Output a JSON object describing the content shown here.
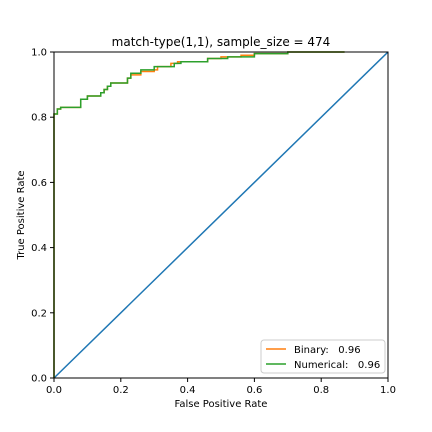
{
  "chart_data": {
    "type": "line",
    "title": "match-type(1,1), sample_size =  474",
    "xlabel": "False Positive Rate",
    "ylabel": "True Positive Rate",
    "xlim": [
      0.0,
      1.0
    ],
    "ylim": [
      0.0,
      1.0
    ],
    "xticks": [
      0.0,
      0.2,
      0.4,
      0.6,
      0.8,
      1.0
    ],
    "yticks": [
      0.0,
      0.2,
      0.4,
      0.6,
      0.8,
      1.0
    ],
    "xtick_labels": [
      "0.0",
      "0.2",
      "0.4",
      "0.6",
      "0.8",
      "1.0"
    ],
    "ytick_labels": [
      "0.0",
      "0.2",
      "0.4",
      "0.6",
      "0.8",
      "1.0"
    ],
    "grid": false,
    "legend_position": "lower-right",
    "series": [
      {
        "name": "Binary:   0.96",
        "color": "#ff7f0e",
        "points": [
          [
            0.0,
            0.0
          ],
          [
            0.0,
            0.81
          ],
          [
            0.01,
            0.81
          ],
          [
            0.01,
            0.825
          ],
          [
            0.02,
            0.825
          ],
          [
            0.02,
            0.83
          ],
          [
            0.08,
            0.83
          ],
          [
            0.08,
            0.855
          ],
          [
            0.1,
            0.855
          ],
          [
            0.1,
            0.865
          ],
          [
            0.14,
            0.865
          ],
          [
            0.14,
            0.875
          ],
          [
            0.15,
            0.875
          ],
          [
            0.15,
            0.885
          ],
          [
            0.16,
            0.885
          ],
          [
            0.16,
            0.895
          ],
          [
            0.17,
            0.895
          ],
          [
            0.17,
            0.905
          ],
          [
            0.22,
            0.905
          ],
          [
            0.22,
            0.92
          ],
          [
            0.23,
            0.92
          ],
          [
            0.23,
            0.93
          ],
          [
            0.26,
            0.93
          ],
          [
            0.26,
            0.94
          ],
          [
            0.3,
            0.94
          ],
          [
            0.3,
            0.945
          ],
          [
            0.31,
            0.945
          ],
          [
            0.31,
            0.955
          ],
          [
            0.35,
            0.955
          ],
          [
            0.35,
            0.965
          ],
          [
            0.37,
            0.965
          ],
          [
            0.37,
            0.97
          ],
          [
            0.46,
            0.97
          ],
          [
            0.46,
            0.98
          ],
          [
            0.5,
            0.98
          ],
          [
            0.5,
            0.985
          ],
          [
            0.56,
            0.985
          ],
          [
            0.56,
            0.99
          ],
          [
            0.6,
            0.99
          ],
          [
            0.6,
            0.995
          ],
          [
            0.7,
            0.995
          ],
          [
            0.7,
            1.0
          ],
          [
            0.87,
            1.0
          ]
        ]
      },
      {
        "name": "Numerical:   0.96",
        "color": "#2ca02c",
        "points": [
          [
            0.0,
            0.0
          ],
          [
            0.0,
            0.81
          ],
          [
            0.01,
            0.81
          ],
          [
            0.01,
            0.825
          ],
          [
            0.02,
            0.825
          ],
          [
            0.02,
            0.83
          ],
          [
            0.08,
            0.83
          ],
          [
            0.08,
            0.855
          ],
          [
            0.1,
            0.855
          ],
          [
            0.1,
            0.865
          ],
          [
            0.14,
            0.865
          ],
          [
            0.14,
            0.875
          ],
          [
            0.15,
            0.875
          ],
          [
            0.15,
            0.885
          ],
          [
            0.16,
            0.885
          ],
          [
            0.16,
            0.895
          ],
          [
            0.17,
            0.895
          ],
          [
            0.17,
            0.905
          ],
          [
            0.22,
            0.905
          ],
          [
            0.22,
            0.92
          ],
          [
            0.23,
            0.92
          ],
          [
            0.23,
            0.935
          ],
          [
            0.26,
            0.935
          ],
          [
            0.26,
            0.945
          ],
          [
            0.3,
            0.945
          ],
          [
            0.3,
            0.955
          ],
          [
            0.36,
            0.955
          ],
          [
            0.36,
            0.965
          ],
          [
            0.38,
            0.965
          ],
          [
            0.38,
            0.97
          ],
          [
            0.46,
            0.97
          ],
          [
            0.46,
            0.98
          ],
          [
            0.52,
            0.98
          ],
          [
            0.52,
            0.985
          ],
          [
            0.6,
            0.985
          ],
          [
            0.6,
            0.995
          ],
          [
            0.7,
            0.995
          ],
          [
            0.7,
            1.0
          ],
          [
            0.87,
            1.0
          ]
        ]
      },
      {
        "name": "",
        "color": "#1f77b4",
        "points": [
          [
            0.0,
            0.0
          ],
          [
            1.0,
            1.0
          ]
        ]
      }
    ]
  }
}
